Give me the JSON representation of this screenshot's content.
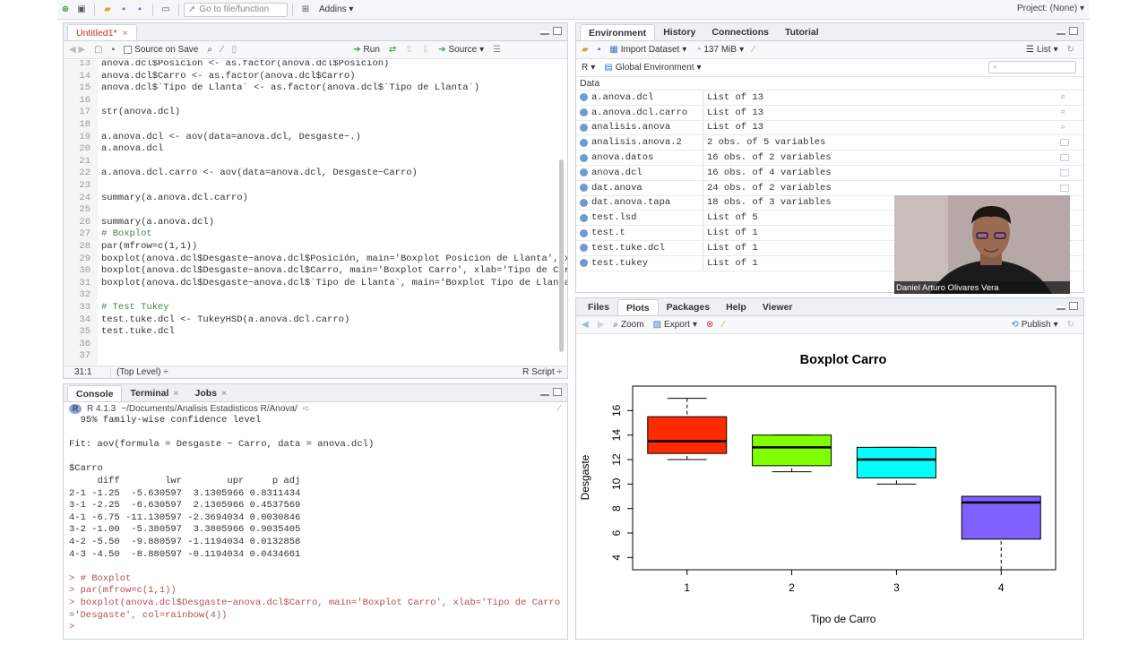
{
  "toolbar": {
    "goto_placeholder": "Go to file/function",
    "addins_label": "Addins",
    "project_label": "Project: (None)"
  },
  "editor": {
    "tab_label": "Untitled1*",
    "source_on_save_label": "Source on Save",
    "run_label": "Run",
    "source_label": "Source",
    "lines": [
      {
        "n": "13",
        "text": "anova.dcl$Posicion <- as.factor(anova.dcl$Posicion)"
      },
      {
        "n": "14",
        "text": "anova.dcl$Carro <- as.factor(anova.dcl$Carro)"
      },
      {
        "n": "15",
        "text": "anova.dcl$`Tipo de Llanta` <- as.factor(anova.dcl$`Tipo de Llanta`)"
      },
      {
        "n": "16",
        "text": ""
      },
      {
        "n": "17",
        "text": "str(anova.dcl)"
      },
      {
        "n": "18",
        "text": ""
      },
      {
        "n": "19",
        "text": "a.anova.dcl <- aov(data=anova.dcl, Desgaste~.)"
      },
      {
        "n": "20",
        "text": "a.anova.dcl"
      },
      {
        "n": "21",
        "text": ""
      },
      {
        "n": "22",
        "text": "a.anova.dcl.carro <- aov(data=anova.dcl, Desgaste~Carro)"
      },
      {
        "n": "23",
        "text": ""
      },
      {
        "n": "24",
        "text": "summary(a.anova.dcl.carro)"
      },
      {
        "n": "25",
        "text": ""
      },
      {
        "n": "26",
        "text": "summary(a.anova.dcl)"
      },
      {
        "n": "27",
        "text": "# Boxplot"
      },
      {
        "n": "28",
        "text": "par(mfrow=c(1,1))"
      },
      {
        "n": "29",
        "text": "boxplot(anova.dcl$Desgaste~anova.dcl$Posición, main='Boxplot Posicion de Llanta', xlab='P"
      },
      {
        "n": "30",
        "text": "boxplot(anova.dcl$Desgaste~anova.dcl$Carro, main='Boxplot Carro', xlab='Tipo de Carro', y"
      },
      {
        "n": "31",
        "text": "boxplot(anova.dcl$Desgaste~anova.dcl$`Tipo de Llanta`, main='Boxplot Tipo de Llanta', xla"
      },
      {
        "n": "32",
        "text": ""
      },
      {
        "n": "33",
        "text": "# Test Tukey"
      },
      {
        "n": "34",
        "text": "test.tuke.dcl <- TukeyHSD(a.anova.dcl.carro)"
      },
      {
        "n": "35",
        "text": "test.tuke.dcl"
      },
      {
        "n": "36",
        "text": ""
      },
      {
        "n": "37",
        "text": ""
      }
    ],
    "status_position": "31:1",
    "status_scope": "(Top Level) ÷",
    "status_type": "R Script ÷"
  },
  "console": {
    "tabs": [
      "Console",
      "Terminal",
      "Jobs"
    ],
    "r_version": "R 4.1.3",
    "path": "~/Documents/Analisis Estadisticos R/Anova/",
    "lines": [
      {
        "text": "  95% family-wise confidence level",
        "cmd": false
      },
      {
        "text": "",
        "cmd": false
      },
      {
        "text": "Fit: aov(formula = Desgaste ~ Carro, data = anova.dcl)",
        "cmd": false
      },
      {
        "text": "",
        "cmd": false
      },
      {
        "text": "$Carro",
        "cmd": false
      },
      {
        "text": "     diff        lwr        upr     p adj",
        "cmd": false
      },
      {
        "text": "2-1 -1.25  -5.630597  3.1305966 0.8311434",
        "cmd": false
      },
      {
        "text": "3-1 -2.25  -6.630597  2.1305966 0.4537569",
        "cmd": false
      },
      {
        "text": "4-1 -6.75 -11.130597 -2.3694034 0.0030846",
        "cmd": false
      },
      {
        "text": "3-2 -1.00  -5.380597  3.3805966 0.9035405",
        "cmd": false
      },
      {
        "text": "4-2 -5.50  -9.880597 -1.1194034 0.0132858",
        "cmd": false
      },
      {
        "text": "4-3 -4.50  -8.880597 -0.1194034 0.0434661",
        "cmd": false
      },
      {
        "text": "",
        "cmd": false
      },
      {
        "text": "> # Boxplot",
        "cmd": true
      },
      {
        "text": "> par(mfrow=c(1,1))",
        "cmd": true
      },
      {
        "text": "> boxplot(anova.dcl$Desgaste~anova.dcl$Carro, main='Boxplot Carro', xlab='Tipo de Carro', ylab",
        "cmd": true
      },
      {
        "text": "='Desgaste', col=rainbow(4))",
        "cmd": true
      },
      {
        "text": "> ",
        "cmd": true
      }
    ]
  },
  "environment": {
    "tabs": [
      "Environment",
      "History",
      "Connections",
      "Tutorial"
    ],
    "import_label": "Import Dataset",
    "memory_label": "137 MiB",
    "list_label": "List",
    "lang_label": "R",
    "scope_label": "Global Environment",
    "section_label": "Data",
    "rows": [
      {
        "name": "a.anova.dcl",
        "value": "List of  13"
      },
      {
        "name": "a.anova.dcl.carro",
        "value": "List of  13"
      },
      {
        "name": "analisis.anova",
        "value": "List of  13"
      },
      {
        "name": "analisis.anova.2",
        "value": "2 obs. of 5 variables"
      },
      {
        "name": "anova.datos",
        "value": "16 obs. of 2 variables"
      },
      {
        "name": "anova.dcl",
        "value": "16 obs. of 4 variables"
      },
      {
        "name": "dat.anova",
        "value": "24 obs. of 2 variables"
      },
      {
        "name": "dat.anova.tapa",
        "value": "18 obs. of 3 variables"
      },
      {
        "name": "test.lsd",
        "value": "List of  5"
      },
      {
        "name": "test.t",
        "value": "List of  1"
      },
      {
        "name": "test.tuke.dcl",
        "value": "List of  1"
      },
      {
        "name": "test.tukey",
        "value": "List of  1"
      }
    ]
  },
  "webcam": {
    "name": "Daniel Arturo Olivares Vera"
  },
  "plots": {
    "tabs": [
      "Files",
      "Plots",
      "Packages",
      "Help",
      "Viewer"
    ],
    "zoom_label": "Zoom",
    "export_label": "Export",
    "publish_label": "Publish"
  },
  "chart_data": {
    "type": "boxplot",
    "title": "Boxplot Carro",
    "xlabel": "Tipo de Carro",
    "ylabel": "Desgaste",
    "categories": [
      "1",
      "2",
      "3",
      "4"
    ],
    "ylim": [
      3,
      18
    ],
    "yticks": [
      4,
      6,
      8,
      10,
      12,
      14,
      16
    ],
    "colors": [
      "#ff2a00",
      "#80ff00",
      "#00ffff",
      "#8060ff"
    ],
    "boxes": [
      {
        "min": 12,
        "q1": 12.5,
        "median": 13.5,
        "q3": 15.5,
        "max": 17
      },
      {
        "min": 11,
        "q1": 11.5,
        "median": 13,
        "q3": 14,
        "max": 14
      },
      {
        "min": 10,
        "q1": 10.5,
        "median": 12,
        "q3": 13,
        "max": 13
      },
      {
        "min": 3,
        "q1": 5.5,
        "median": 8.5,
        "q3": 9,
        "max": 9
      }
    ]
  }
}
